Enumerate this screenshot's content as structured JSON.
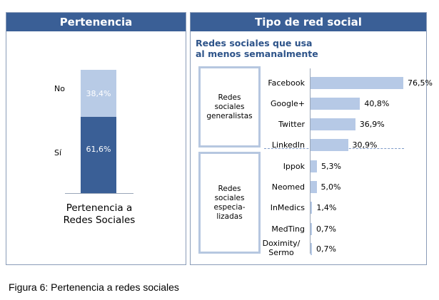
{
  "left_panel": {
    "header": "Pertenencia",
    "caption_line1": "Pertenencia a",
    "caption_line2": "Redes Sociales",
    "labels": {
      "no": "No",
      "si": "Sí"
    },
    "value_labels": {
      "no": "38,4%",
      "si": "61,6%"
    }
  },
  "right_panel": {
    "header": "Tipo de red social",
    "subtitle_line1": "Redes sociales que usa",
    "subtitle_line2": "al menos semanalmente",
    "groups": {
      "generalistas": "Redes sociales generalistas",
      "especializadas": "Redes sociales especia-lizadas"
    }
  },
  "figure_caption": "Figura 6: Pertenencia a  redes sociales",
  "colors": {
    "header_bg": "#3a5f96",
    "bar_light": "#b6c9e6",
    "bar_dark": "#3a5f96"
  },
  "chart_data": [
    {
      "type": "bar",
      "stacked": true,
      "categories": [
        "Pertenencia a Redes Sociales"
      ],
      "series": [
        {
          "name": "No",
          "values": [
            38.4
          ],
          "label": "38,4%"
        },
        {
          "name": "Sí",
          "values": [
            61.6
          ],
          "label": "61,6%"
        }
      ],
      "title": "Pertenencia"
    },
    {
      "type": "bar",
      "orientation": "horizontal",
      "title": "Tipo de red social",
      "subtitle": "Redes sociales que usa al menos semanalmente",
      "categories": [
        "Facebook",
        "Google+",
        "Twitter",
        "LinkedIn",
        "Ippok",
        "Neomed",
        "InMedics",
        "MedTing",
        "Doximity/ Sermo"
      ],
      "values": [
        76.5,
        40.8,
        36.9,
        30.9,
        5.3,
        5.0,
        1.4,
        0.7,
        0.7
      ],
      "value_labels": [
        "76,5%",
        "40,8%",
        "36,9%",
        "30,9%",
        "5,3%",
        "5,0%",
        "1,4%",
        "0,7%",
        "0,7%"
      ],
      "xlim": [
        0,
        100
      ]
    }
  ]
}
